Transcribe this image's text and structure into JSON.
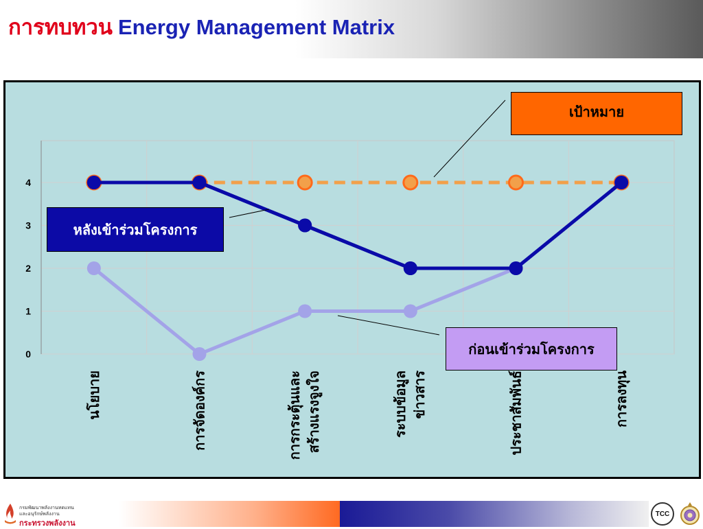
{
  "header": {
    "title_thai": "การทบทวน",
    "title_en": "Energy Management Matrix"
  },
  "chart_data": {
    "type": "line",
    "categories": [
      "นโยบาย",
      "การจัดองค์กร",
      "การกระตุ้นและ\nสร้างแรงจูงใจ",
      "ระบบข้อมูล\nข่าวสาร",
      "ประชาสัมพันธ์",
      "การลงทุน"
    ],
    "ylim": [
      0,
      4
    ],
    "yticks": [
      "0",
      "1",
      "2",
      "3",
      "4"
    ],
    "grid": true,
    "series": [
      {
        "name": "เป้าหมาย",
        "values": [
          4,
          4,
          4,
          4,
          4,
          4
        ],
        "color": "#f2a04a",
        "marker_color": "#ff6a1a",
        "style": "dashed"
      },
      {
        "name": "หลังเข้าร่วมโครงการ",
        "values": [
          4,
          4,
          3,
          2,
          2,
          4
        ],
        "color": "#0a0aa8",
        "style": "solid"
      },
      {
        "name": "ก่อนเข้าร่วมโครงการ",
        "values": [
          2,
          0,
          1,
          1,
          2,
          4
        ],
        "color": "#a3a3e8",
        "style": "solid"
      }
    ]
  },
  "callouts": {
    "target": "เป้าหมาย",
    "after": "หลังเข้าร่วมโครงการ",
    "before": "ก่อนเข้าร่วมโครงการ"
  },
  "footer": {
    "ministry_line1": "กรมพัฒนาพลังงานทดแทน",
    "ministry_line2": "และอนุรักษ์พลังงาน",
    "ministry_line3": "กระทรวงพลังงาน",
    "tcc_logo": "TCC"
  },
  "colors": {
    "title_thai": "#e0001a",
    "title_en": "#1a23b4",
    "chart_bg": "#b8dde0",
    "target_box": "#ff6600",
    "after_box": "#0c0aa6",
    "before_box": "#c39cf3"
  }
}
